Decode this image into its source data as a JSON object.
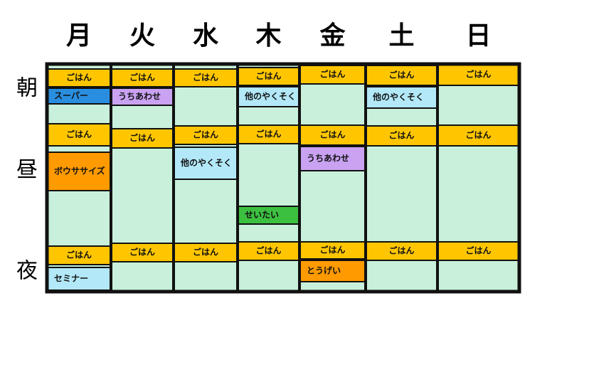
{
  "periods": [
    "朝",
    "昼",
    "夜"
  ],
  "columns": [
    {
      "day": "月",
      "events": [
        {
          "label": "ごはん",
          "color": "#ffc600"
        },
        {
          "label": "スーパー",
          "color": "#2a8ee0"
        },
        {
          "label": "ごはん",
          "color": "#ffc600"
        },
        {
          "label": "ボウササイズ",
          "color": "#ff9a00"
        },
        {
          "label": "ごはん",
          "color": "#ffc600"
        },
        {
          "label": "セミナー",
          "color": "#b2e8f8"
        }
      ]
    },
    {
      "day": "火",
      "events": [
        {
          "label": "ごはん",
          "color": "#ffc600"
        },
        {
          "label": "うちあわせ",
          "color": "#c9a2f2"
        },
        {
          "label": "ごはん",
          "color": "#ffc600"
        },
        {
          "label": "ごはん",
          "color": "#ffc600"
        }
      ]
    },
    {
      "day": "水",
      "events": [
        {
          "label": "ごはん",
          "color": "#ffc600"
        },
        {
          "label": "ごはん",
          "color": "#ffc600"
        },
        {
          "label": "他のやくそく",
          "color": "#b2e8f8"
        },
        {
          "label": "ごはん",
          "color": "#ffc600"
        }
      ]
    },
    {
      "day": "木",
      "events": [
        {
          "label": "ごはん",
          "color": "#ffc600"
        },
        {
          "label": "他のやくそく",
          "color": "#b2e8f8"
        },
        {
          "label": "ごはん",
          "color": "#ffc600"
        },
        {
          "label": "せいたい",
          "color": "#3cc040"
        },
        {
          "label": "ごはん",
          "color": "#ffc600"
        }
      ]
    },
    {
      "day": "金",
      "events": [
        {
          "label": "ごはん",
          "color": "#ffc600"
        },
        {
          "label": "ごはん",
          "color": "#ffc600"
        },
        {
          "label": "うちあわせ",
          "color": "#c9a2f2"
        },
        {
          "label": "ごはん",
          "color": "#ffc600"
        },
        {
          "label": "とうげい",
          "color": "#ff9a00"
        }
      ]
    },
    {
      "day": "土",
      "events": [
        {
          "label": "ごはん",
          "color": "#ffc600"
        },
        {
          "label": "他のやくそく",
          "color": "#b2e8f8"
        },
        {
          "label": "ごはん",
          "color": "#ffc600"
        },
        {
          "label": "ごはん",
          "color": "#ffc600"
        }
      ]
    },
    {
      "day": "日",
      "events": [
        {
          "label": "ごはん",
          "color": "#ffc600"
        },
        {
          "label": "ごはん",
          "color": "#ffc600"
        },
        {
          "label": "ごはん",
          "color": "#ffc600"
        }
      ]
    }
  ]
}
